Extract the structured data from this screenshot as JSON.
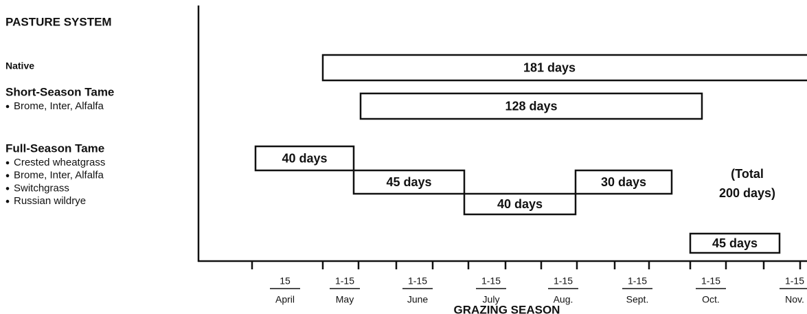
{
  "header": {
    "title": "PASTURE SYSTEM"
  },
  "systems": [
    {
      "name": "Native",
      "items": []
    },
    {
      "name": "Short-Season Tame",
      "items": [
        "Brome, Inter, Alfalfa"
      ]
    },
    {
      "name": "Full-Season Tame",
      "items": [
        "Crested wheatgrass",
        "Brome, Inter, Alfalfa",
        "Switchgrass",
        "Russian wildrye"
      ]
    }
  ],
  "bars": [
    "181 days",
    "128 days",
    "40 days",
    "45 days",
    "40 days",
    "30 days",
    "45 days"
  ],
  "note": [
    "(Total",
    "200 days)"
  ],
  "months": [
    {
      "day": "15",
      "month": "April"
    },
    {
      "day": "1-15",
      "month": "May"
    },
    {
      "day": "1-15",
      "month": "June"
    },
    {
      "day": "1-15",
      "month": "July"
    },
    {
      "day": "1-15",
      "month": "Aug."
    },
    {
      "day": "1-15",
      "month": "Sept."
    },
    {
      "day": "1-15",
      "month": "Oct."
    },
    {
      "day": "1-15",
      "month": "Nov."
    }
  ],
  "axis_title": "GRAZING SEASON"
}
